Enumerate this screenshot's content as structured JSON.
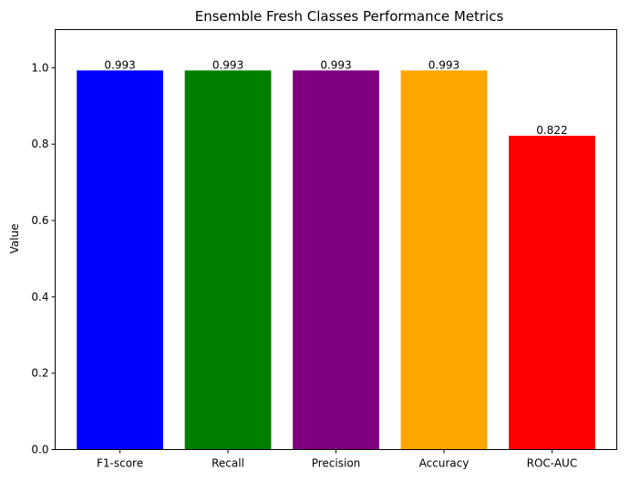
{
  "chart_data": {
    "type": "bar",
    "title": "Ensemble Fresh Classes Performance Metrics",
    "xlabel": "",
    "ylabel": "Value",
    "categories": [
      "F1-score",
      "Recall",
      "Precision",
      "Accuracy",
      "ROC-AUC"
    ],
    "values": [
      0.993,
      0.993,
      0.993,
      0.993,
      0.822
    ],
    "value_labels": [
      "0.993",
      "0.993",
      "0.993",
      "0.993",
      "0.822"
    ],
    "colors": [
      "#0000ff",
      "#008000",
      "#800080",
      "#ffa500",
      "#ff0000"
    ],
    "ylim": [
      0,
      1.1
    ],
    "yticks": [
      0.0,
      0.2,
      0.4,
      0.6,
      0.8,
      1.0
    ],
    "ytick_labels": [
      "0.0",
      "0.2",
      "0.4",
      "0.6",
      "0.8",
      "1.0"
    ],
    "grid": false,
    "legend": "none"
  }
}
